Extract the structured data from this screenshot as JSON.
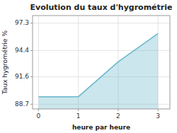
{
  "chart_data": {
    "type": "area",
    "title": "Evolution du taux d'hygrométrie",
    "x_label": "heure par heure",
    "y_label": "Taux hygrométrie %",
    "x": [
      0,
      1,
      2,
      3
    ],
    "values": [
      89.5,
      89.5,
      93.2,
      96.2
    ],
    "color": "#6ab8cc",
    "xlim": [
      -0.15,
      3.3
    ],
    "xticks": [
      0,
      1,
      2,
      3
    ],
    "ylim": [
      88.2,
      98.1
    ],
    "yticks": [
      88.7,
      91.6,
      94.4,
      97.3
    ],
    "grid": true
  }
}
